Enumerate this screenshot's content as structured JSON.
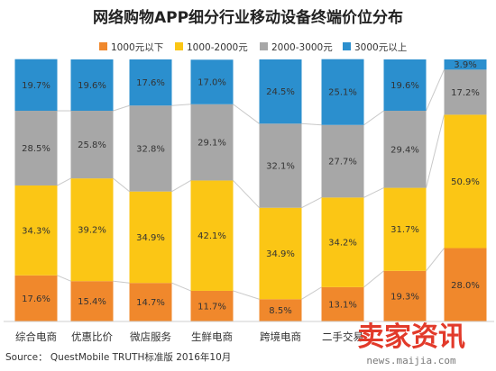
{
  "chart_data": {
    "type": "bar",
    "stacked": true,
    "title": "网络购物APP细分行业移动设备终端价位分布",
    "categories": [
      "综合电商",
      "优惠比价",
      "微店服务",
      "生鲜电商",
      "跨境电商",
      "二手交易",
      "",
      ""
    ],
    "series": [
      {
        "name": "1000元以下",
        "color": "#f0882c",
        "values": [
          17.6,
          15.4,
          14.7,
          11.7,
          8.5,
          13.1,
          19.3,
          28.0
        ]
      },
      {
        "name": "1000-2000元",
        "color": "#fbc615",
        "values": [
          34.3,
          39.2,
          34.9,
          42.1,
          34.9,
          34.2,
          31.7,
          50.9
        ]
      },
      {
        "name": "2000-3000元",
        "color": "#a7a7a7",
        "values": [
          28.5,
          25.8,
          32.8,
          29.1,
          32.1,
          27.7,
          29.4,
          17.2
        ]
      },
      {
        "name": "3000元以上",
        "color": "#2b8fce",
        "values": [
          19.7,
          19.6,
          17.6,
          17.0,
          24.5,
          25.1,
          19.6,
          3.9
        ]
      }
    ],
    "value_suffix": "%",
    "ylim": [
      0,
      100
    ],
    "legend_position": "top",
    "grid": false
  },
  "source": "Source： QuestMobile TRUTH标准版 2016年10月",
  "watermark": {
    "text": "卖家资讯",
    "url": "news.maijia.com"
  }
}
